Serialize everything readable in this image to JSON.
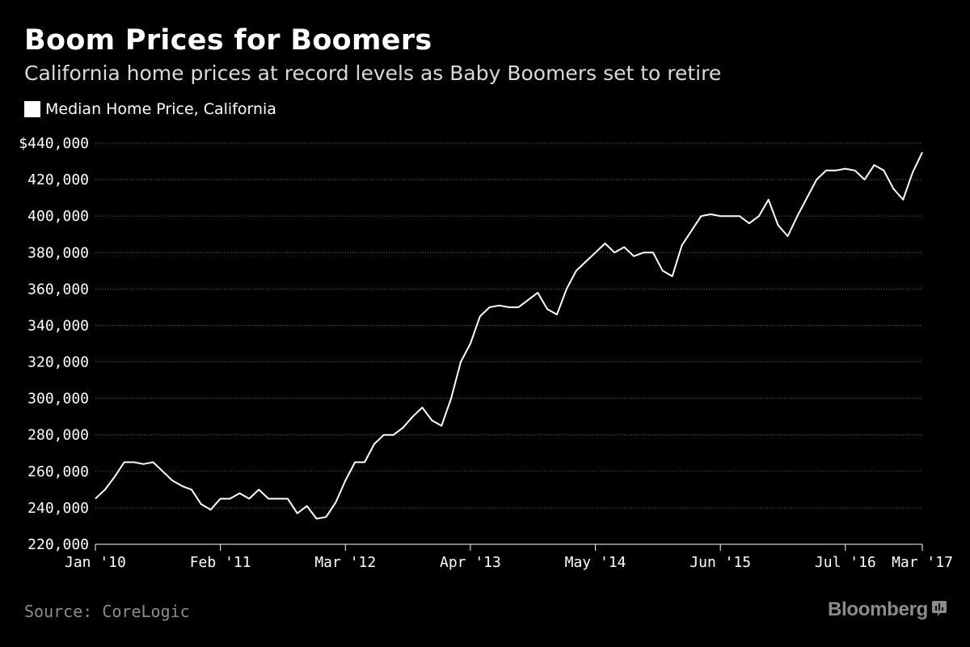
{
  "header": {
    "title": "Boom Prices for Boomers",
    "subtitle": "California home prices at record levels as Baby Boomers set to retire"
  },
  "legend": {
    "label": "Median Home Price, California"
  },
  "footer": {
    "source": "Source: CoreLogic",
    "brand": "Bloomberg",
    "brand_icon": "bloomberg-chart-icon"
  },
  "colors": {
    "background": "#000000",
    "line": "#ffffff",
    "grid": "#666666",
    "muted": "#8c8c8c"
  },
  "chart_data": {
    "type": "line",
    "title": "Boom Prices for Boomers",
    "subtitle": "California home prices at record levels as Baby Boomers set to retire",
    "xlabel": "",
    "ylabel": "",
    "ylim": [
      220000,
      440000
    ],
    "xlim": [
      "2010-01",
      "2017-03"
    ],
    "grid": true,
    "legend_position": "top-left",
    "y_ticks": [
      {
        "value": 220000,
        "label": "220,000"
      },
      {
        "value": 240000,
        "label": "240,000"
      },
      {
        "value": 260000,
        "label": "260,000"
      },
      {
        "value": 280000,
        "label": "280,000"
      },
      {
        "value": 300000,
        "label": "300,000"
      },
      {
        "value": 320000,
        "label": "320,000"
      },
      {
        "value": 340000,
        "label": "340,000"
      },
      {
        "value": 360000,
        "label": "360,000"
      },
      {
        "value": 380000,
        "label": "380,000"
      },
      {
        "value": 400000,
        "label": "400,000"
      },
      {
        "value": 420000,
        "label": "420,000"
      },
      {
        "value": 440000,
        "label": "$440,000"
      }
    ],
    "x_ticks": [
      {
        "value": "2010-01",
        "label": "Jan '10"
      },
      {
        "value": "2011-02",
        "label": "Feb '11"
      },
      {
        "value": "2012-03",
        "label": "Mar '12"
      },
      {
        "value": "2013-04",
        "label": "Apr '13"
      },
      {
        "value": "2014-05",
        "label": "May '14"
      },
      {
        "value": "2015-06",
        "label": "Jun '15"
      },
      {
        "value": "2016-07",
        "label": "Jul '16"
      },
      {
        "value": "2017-03",
        "label": "Mar '17"
      }
    ],
    "series": [
      {
        "name": "Median Home Price, California",
        "x": [
          "2010-01",
          "2010-02",
          "2010-03",
          "2010-04",
          "2010-05",
          "2010-06",
          "2010-07",
          "2010-08",
          "2010-09",
          "2010-10",
          "2010-11",
          "2010-12",
          "2011-01",
          "2011-02",
          "2011-03",
          "2011-04",
          "2011-05",
          "2011-06",
          "2011-07",
          "2011-08",
          "2011-09",
          "2011-10",
          "2011-11",
          "2011-12",
          "2012-01",
          "2012-02",
          "2012-03",
          "2012-04",
          "2012-05",
          "2012-06",
          "2012-07",
          "2012-08",
          "2012-09",
          "2012-10",
          "2012-11",
          "2012-12",
          "2013-01",
          "2013-02",
          "2013-03",
          "2013-04",
          "2013-05",
          "2013-06",
          "2013-07",
          "2013-08",
          "2013-09",
          "2013-10",
          "2013-11",
          "2013-12",
          "2014-01",
          "2014-02",
          "2014-03",
          "2014-04",
          "2014-05",
          "2014-06",
          "2014-07",
          "2014-08",
          "2014-09",
          "2014-10",
          "2014-11",
          "2014-12",
          "2015-01",
          "2015-02",
          "2015-03",
          "2015-04",
          "2015-05",
          "2015-06",
          "2015-07",
          "2015-08",
          "2015-09",
          "2015-10",
          "2015-11",
          "2015-12",
          "2016-01",
          "2016-02",
          "2016-03",
          "2016-04",
          "2016-05",
          "2016-06",
          "2016-07",
          "2016-08",
          "2016-09",
          "2016-10",
          "2016-11",
          "2016-12",
          "2017-01",
          "2017-02",
          "2017-03"
        ],
        "values": [
          245000,
          250000,
          257000,
          265000,
          265000,
          264000,
          265000,
          260000,
          255000,
          252000,
          250000,
          242000,
          239000,
          245000,
          245000,
          248000,
          245000,
          250000,
          245000,
          245000,
          245000,
          237000,
          241000,
          234000,
          235000,
          243000,
          255000,
          265000,
          265000,
          275000,
          280000,
          280000,
          284000,
          290000,
          295000,
          288000,
          285000,
          300000,
          320000,
          330000,
          345000,
          350000,
          351000,
          350000,
          350000,
          354000,
          358000,
          349000,
          346000,
          360000,
          370000,
          375000,
          380000,
          385000,
          380000,
          383000,
          378000,
          380000,
          380000,
          370000,
          367000,
          384000,
          392000,
          400000,
          401000,
          400000,
          400000,
          400000,
          396000,
          400000,
          409000,
          395000,
          389000,
          400000,
          410000,
          420000,
          425000,
          425000,
          426000,
          425000,
          420000,
          428000,
          425000,
          415000,
          409000,
          424000,
          435000
        ]
      }
    ]
  }
}
